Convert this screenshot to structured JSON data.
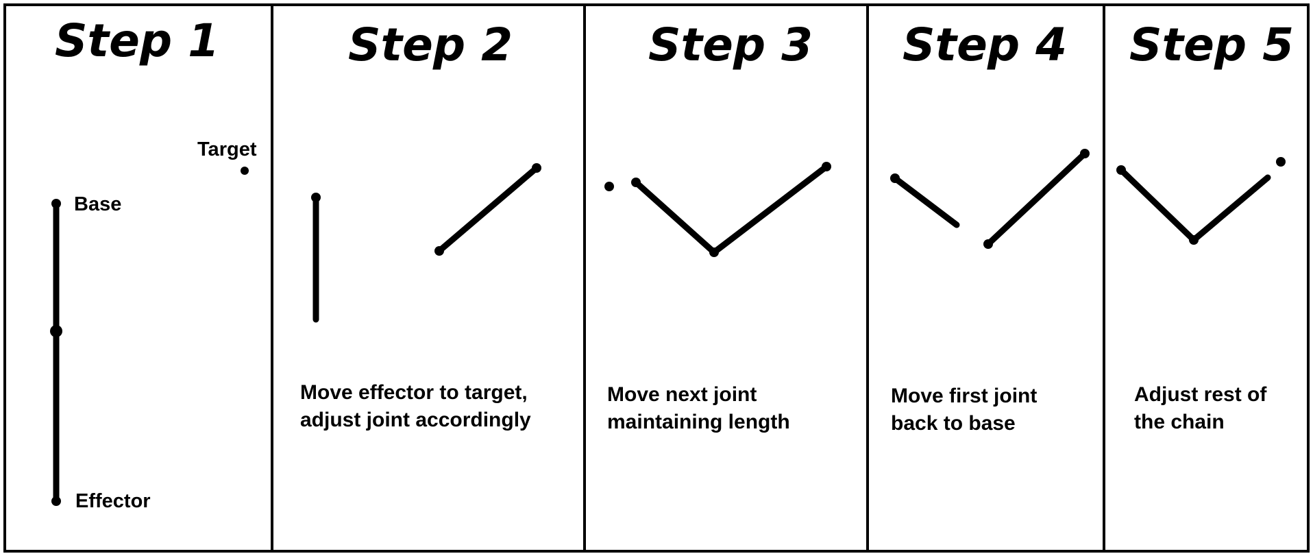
{
  "steps": [
    {
      "title": "Step 1",
      "labels": {
        "target": "Target",
        "base": "Base",
        "effector": "Effector"
      },
      "caption": []
    },
    {
      "title": "Step 2",
      "caption": [
        "Move effector to target,",
        "adjust joint accordingly"
      ]
    },
    {
      "title": "Step 3",
      "caption": [
        "Move next joint",
        "maintaining length"
      ]
    },
    {
      "title": "Step 4",
      "caption": [
        "Move first joint",
        "back to base"
      ]
    },
    {
      "title": "Step 5",
      "caption": [
        "Adjust rest of",
        "the chain"
      ]
    }
  ]
}
